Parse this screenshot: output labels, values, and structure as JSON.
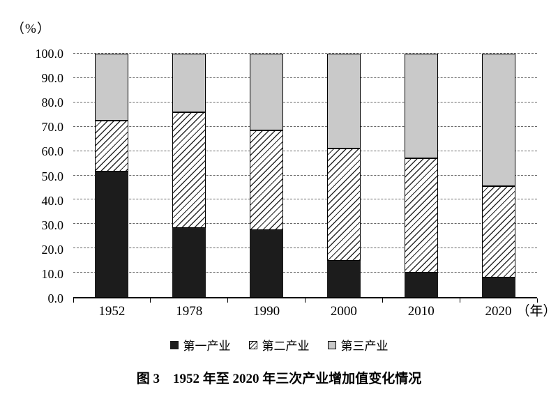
{
  "chart_data": {
    "type": "bar",
    "stacked": true,
    "title": "图 3　1952 年至 2020 年三次产业增加值变化情况",
    "unit_label": "（%）",
    "categories": [
      "1952",
      "1978",
      "1990",
      "2000",
      "2010",
      "2020"
    ],
    "x_suffix": "（年）",
    "series": [
      {
        "name": "第一产业",
        "style": "solid-black",
        "values": [
          51.5,
          28.5,
          27.5,
          15.0,
          10.0,
          8.0
        ]
      },
      {
        "name": "第二产业",
        "style": "diagonal-hatch",
        "values": [
          21.0,
          47.5,
          41.0,
          46.0,
          47.0,
          37.5
        ]
      },
      {
        "name": "第三产业",
        "style": "solid-gray",
        "values": [
          27.5,
          24.0,
          31.5,
          39.0,
          43.0,
          54.5
        ]
      }
    ],
    "ylim": [
      0,
      100
    ],
    "ytick_step": 10,
    "yticks": [
      "100.0",
      "90.0",
      "80.0",
      "70.0",
      "60.0",
      "50.0",
      "40.0",
      "30.0",
      "20.0",
      "10.0",
      "0.0"
    ],
    "grid": "dashed horizontal",
    "legend_position": "bottom"
  },
  "legend": {
    "items": [
      {
        "label": "第一产业",
        "style": "solid-black"
      },
      {
        "label": "第二产业",
        "style": "diagonal-hatch"
      },
      {
        "label": "第三产业",
        "style": "solid-gray"
      }
    ]
  },
  "caption": "图 3　1952 年至 2020 年三次产业增加值变化情况",
  "colors": {
    "primary_series": "#1c1c1c",
    "tertiary_series": "#c9c9c9",
    "hatch_line": "#2a2a2a",
    "gridline": "#666666",
    "axis": "#000000"
  }
}
